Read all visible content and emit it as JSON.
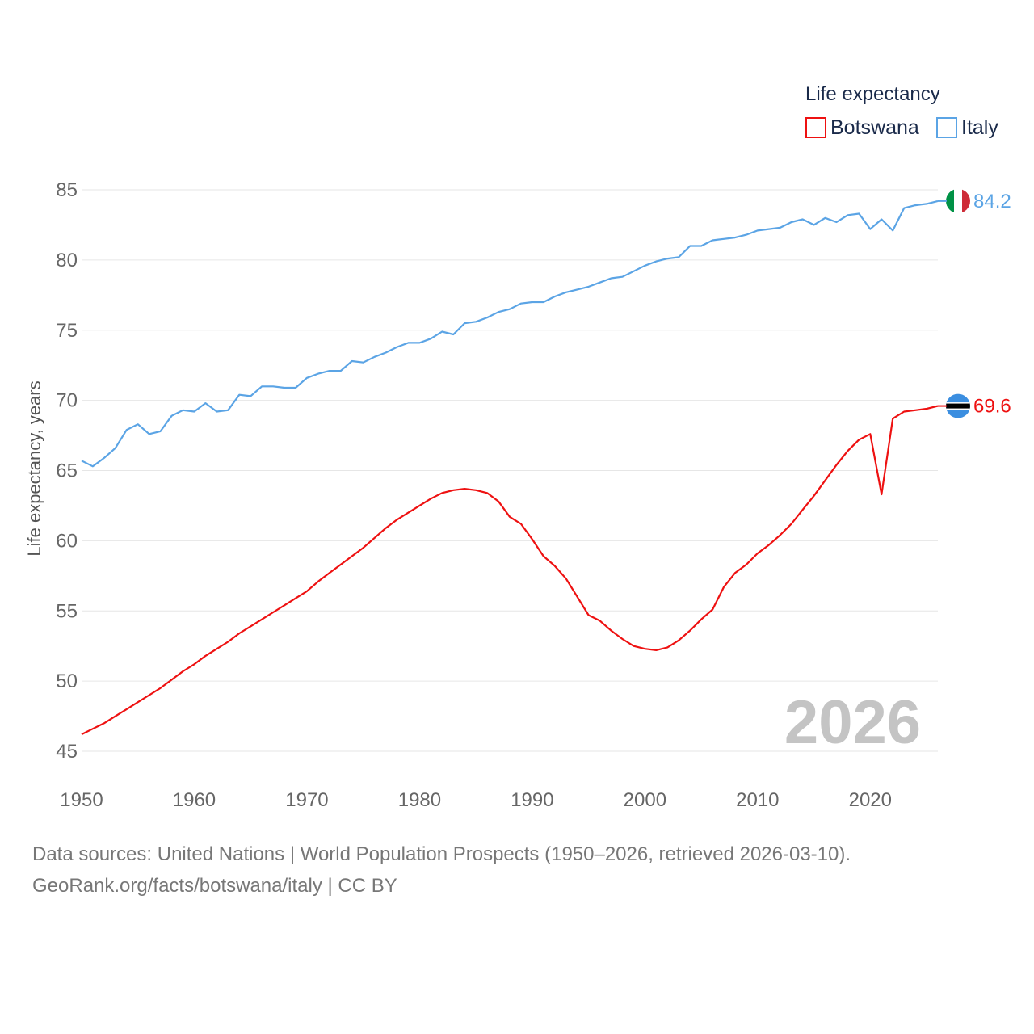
{
  "chart_data": {
    "type": "line",
    "title": "",
    "xlabel": "",
    "ylabel": "Life expectancy, years",
    "xlim": [
      1950,
      2026
    ],
    "ylim": [
      45,
      85
    ],
    "x_ticks": [
      1950,
      1960,
      1970,
      1980,
      1990,
      2000,
      2010,
      2020
    ],
    "y_ticks": [
      45,
      50,
      55,
      60,
      65,
      70,
      75,
      80,
      85
    ],
    "grid": true,
    "legend_title": "Life expectancy",
    "legend_position": "top-right",
    "year_watermark": "2026",
    "x": [
      1950,
      1951,
      1952,
      1953,
      1954,
      1955,
      1956,
      1957,
      1958,
      1959,
      1960,
      1961,
      1962,
      1963,
      1964,
      1965,
      1966,
      1967,
      1968,
      1969,
      1970,
      1971,
      1972,
      1973,
      1974,
      1975,
      1976,
      1977,
      1978,
      1979,
      1980,
      1981,
      1982,
      1983,
      1984,
      1985,
      1986,
      1987,
      1988,
      1989,
      1990,
      1991,
      1992,
      1993,
      1994,
      1995,
      1996,
      1997,
      1998,
      1999,
      2000,
      2001,
      2002,
      2003,
      2004,
      2005,
      2006,
      2007,
      2008,
      2009,
      2010,
      2011,
      2012,
      2013,
      2014,
      2015,
      2016,
      2017,
      2018,
      2019,
      2020,
      2021,
      2022,
      2023,
      2024,
      2025,
      2026
    ],
    "series": [
      {
        "name": "Botswana",
        "color": "#ee1111",
        "end_label": "69.6",
        "flag": "botswana-flag",
        "values": [
          46.2,
          46.6,
          47.0,
          47.5,
          48.0,
          48.5,
          49.0,
          49.5,
          50.1,
          50.7,
          51.2,
          51.8,
          52.3,
          52.8,
          53.4,
          53.9,
          54.4,
          54.9,
          55.4,
          55.9,
          56.4,
          57.1,
          57.7,
          58.3,
          58.9,
          59.5,
          60.2,
          60.9,
          61.5,
          62.0,
          62.5,
          63.0,
          63.4,
          63.6,
          63.7,
          63.6,
          63.4,
          62.8,
          61.7,
          61.2,
          60.1,
          58.9,
          58.2,
          57.3,
          56.0,
          54.7,
          54.3,
          53.6,
          53.0,
          52.5,
          52.3,
          52.2,
          52.4,
          52.9,
          53.6,
          54.4,
          55.1,
          56.7,
          57.7,
          58.3,
          59.1,
          59.7,
          60.4,
          61.2,
          62.2,
          63.2,
          64.3,
          65.4,
          66.4,
          67.2,
          67.6,
          63.3,
          68.7,
          69.2,
          69.3,
          69.4,
          69.6
        ]
      },
      {
        "name": "Italy",
        "color": "#5ba4e5",
        "end_label": "84.2",
        "flag": "italy-flag",
        "values": [
          65.7,
          65.3,
          65.9,
          66.6,
          67.9,
          68.3,
          67.6,
          67.8,
          68.9,
          69.3,
          69.2,
          69.8,
          69.2,
          69.3,
          70.4,
          70.3,
          71.0,
          71.0,
          70.9,
          70.9,
          71.6,
          71.9,
          72.1,
          72.1,
          72.8,
          72.7,
          73.1,
          73.4,
          73.8,
          74.1,
          74.1,
          74.4,
          74.9,
          74.7,
          75.5,
          75.6,
          75.9,
          76.3,
          76.5,
          76.9,
          77.0,
          77.0,
          77.4,
          77.7,
          77.9,
          78.1,
          78.4,
          78.7,
          78.8,
          79.2,
          79.6,
          79.9,
          80.1,
          80.2,
          81.0,
          81.0,
          81.4,
          81.5,
          81.6,
          81.8,
          82.1,
          82.2,
          82.3,
          82.7,
          82.9,
          82.5,
          83.0,
          82.7,
          83.2,
          83.3,
          82.2,
          82.9,
          82.1,
          83.7,
          83.9,
          84.0,
          84.2
        ]
      }
    ]
  },
  "footer": {
    "source_line": "Data sources: United Nations | World Population Prospects (1950–2026, retrieved 2026-03-10).",
    "url_line": "GeoRank.org/facts/botswana/italy | CC BY"
  }
}
